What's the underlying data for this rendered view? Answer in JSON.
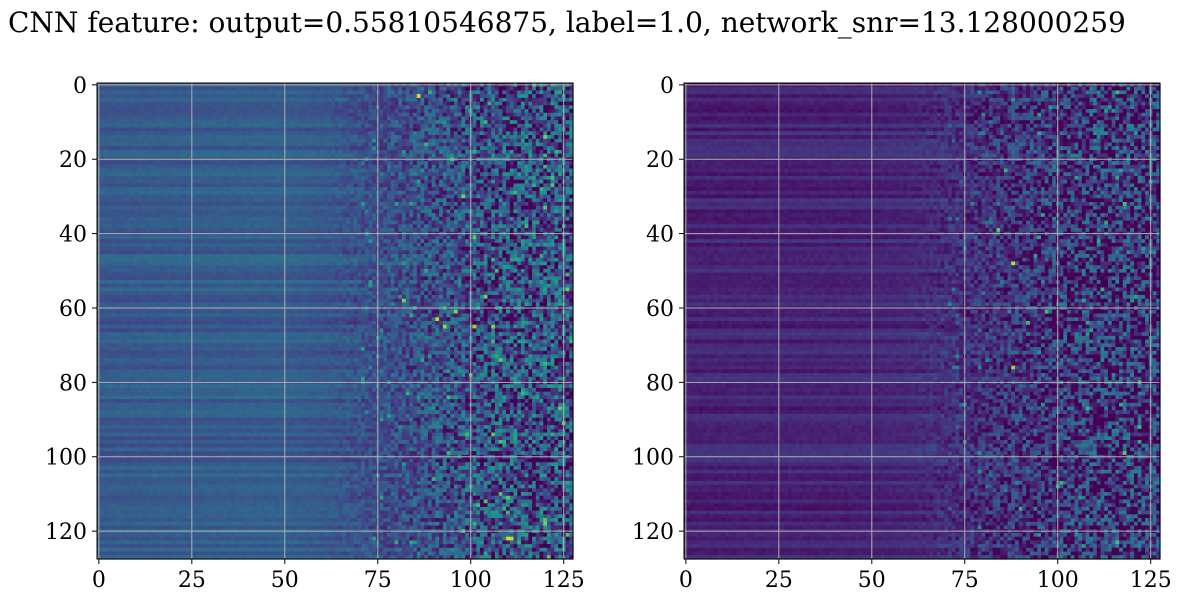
{
  "figure": {
    "title": "CNN feature: output=0.55810546875, label=1.0, network_snr=13.128000259"
  },
  "chart_data": [
    {
      "type": "heatmap",
      "title": "",
      "xlabel": "",
      "ylabel": "",
      "shape": [
        128,
        128
      ],
      "colormap": "viridis",
      "xlim": [
        0,
        128
      ],
      "ylim": [
        128,
        0
      ],
      "xticks": [
        0,
        25,
        50,
        75,
        100,
        125
      ],
      "yticks": [
        0,
        20,
        40,
        60,
        80,
        100,
        120
      ],
      "grid": true,
      "value_range": [
        0,
        1
      ],
      "column_profile": [
        {
          "x": 0,
          "mean": 0.28
        },
        {
          "x": 50,
          "mean": 0.3
        },
        {
          "x": 65,
          "mean": 0.27
        },
        {
          "x": 75,
          "mean": 0.24
        },
        {
          "x": 127,
          "mean": 0.24
        }
      ],
      "hotspots": [
        {
          "x": 86,
          "y": 3,
          "value": 0.95
        },
        {
          "x": 91,
          "y": 63,
          "value": 0.9
        },
        {
          "x": 93,
          "y": 65,
          "value": 0.85
        },
        {
          "x": 96,
          "y": 61,
          "value": 0.8
        },
        {
          "x": 101,
          "y": 65,
          "value": 0.85
        },
        {
          "x": 104,
          "y": 57,
          "value": 0.8
        },
        {
          "x": 106,
          "y": 65,
          "value": 0.8
        },
        {
          "x": 110,
          "y": 122,
          "value": 0.92
        },
        {
          "x": 111,
          "y": 122,
          "value": 0.9
        },
        {
          "x": 98,
          "y": 30,
          "value": 0.8
        },
        {
          "x": 101,
          "y": 41,
          "value": 0.75
        },
        {
          "x": 100,
          "y": 78,
          "value": 0.75
        },
        {
          "x": 122,
          "y": 25,
          "value": 0.7
        },
        {
          "x": 82,
          "y": 58,
          "value": 0.8
        }
      ]
    },
    {
      "type": "heatmap",
      "title": "",
      "xlabel": "",
      "ylabel": "",
      "shape": [
        128,
        128
      ],
      "colormap": "viridis",
      "xlim": [
        0,
        128
      ],
      "ylim": [
        128,
        0
      ],
      "xticks": [
        0,
        25,
        50,
        75,
        100,
        125
      ],
      "yticks": [
        0,
        20,
        40,
        60,
        80,
        100,
        120
      ],
      "grid": true,
      "value_range": [
        0,
        1
      ],
      "column_profile": [
        {
          "x": 0,
          "mean": 0.1
        },
        {
          "x": 50,
          "mean": 0.11
        },
        {
          "x": 65,
          "mean": 0.13
        },
        {
          "x": 75,
          "mean": 0.14
        },
        {
          "x": 127,
          "mean": 0.15
        }
      ],
      "hotspots": [
        {
          "x": 88,
          "y": 48,
          "value": 0.9
        },
        {
          "x": 88,
          "y": 76,
          "value": 0.85
        },
        {
          "x": 84,
          "y": 39,
          "value": 0.75
        },
        {
          "x": 92,
          "y": 64,
          "value": 0.7
        },
        {
          "x": 97,
          "y": 61,
          "value": 0.7
        },
        {
          "x": 118,
          "y": 99,
          "value": 0.75
        },
        {
          "x": 116,
          "y": 123,
          "value": 0.7
        },
        {
          "x": 90,
          "y": 114,
          "value": 0.65
        },
        {
          "x": 86,
          "y": 23,
          "value": 0.65
        },
        {
          "x": 101,
          "y": 107,
          "value": 0.65
        },
        {
          "x": 112,
          "y": 55,
          "value": 0.65
        },
        {
          "x": 107,
          "y": 58,
          "value": 0.6
        }
      ]
    }
  ]
}
